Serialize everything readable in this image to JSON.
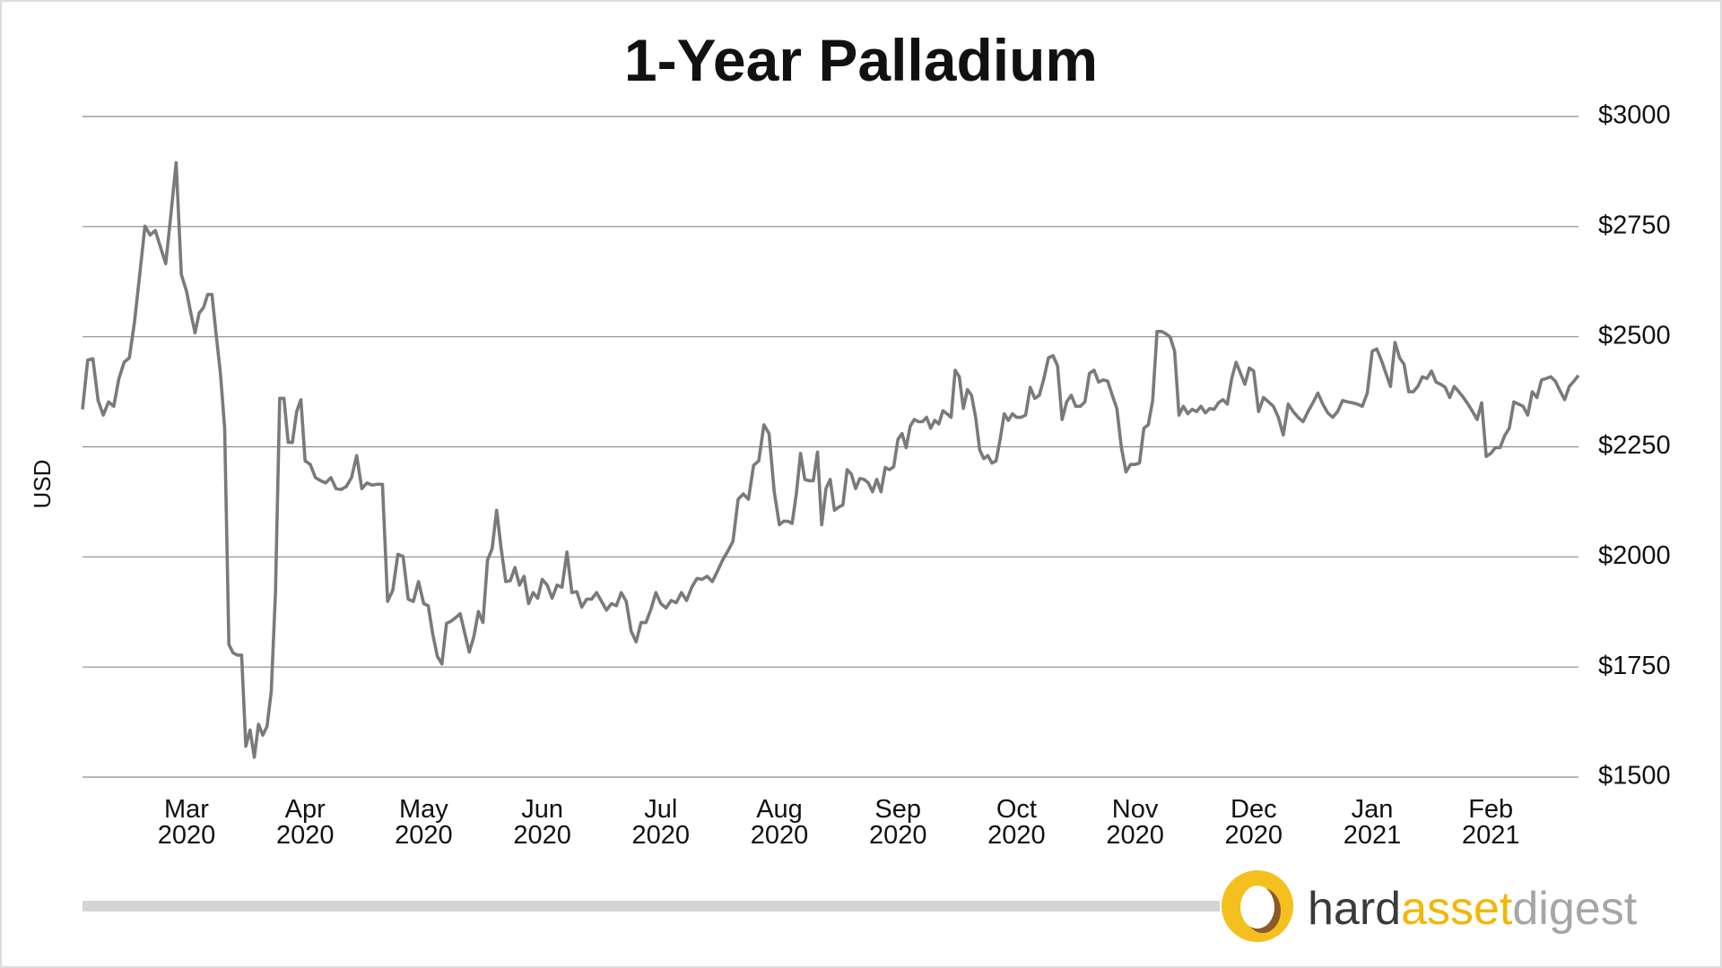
{
  "chart_data": {
    "type": "line",
    "title": "1-Year Palladium",
    "ylabel": "USD",
    "ylim": [
      1500,
      3000
    ],
    "yticks": [
      {
        "value": 1500,
        "label": "$1500"
      },
      {
        "value": 1750,
        "label": "$1750"
      },
      {
        "value": 2000,
        "label": "$2000"
      },
      {
        "value": 2250,
        "label": "$2250"
      },
      {
        "value": 2500,
        "label": "$2500"
      },
      {
        "value": 2750,
        "label": "$2750"
      },
      {
        "value": 3000,
        "label": "$3000"
      }
    ],
    "grid": true,
    "color": "#7a7a7a",
    "x": [
      null,
      null,
      null,
      null,
      null,
      null,
      null,
      null,
      null,
      null,
      null,
      null,
      null,
      null,
      null,
      null,
      null,
      null,
      null,
      null,
      "Mar 2020",
      "Mar 2020",
      "Mar 2020",
      "Mar 2020",
      "Mar 2020",
      "Mar 2020",
      "Mar 2020",
      "Mar 2020",
      "Mar 2020",
      "Mar 2020",
      "Mar 2020",
      "Mar 2020",
      "Mar 2020",
      "Mar 2020",
      "Mar 2020",
      "Mar 2020",
      "Mar 2020",
      "Mar 2020",
      "Mar 2020",
      "Mar 2020",
      "Mar 2020",
      "Mar 2020",
      "Mar 2020",
      "Mar 2020",
      "Mar 2020",
      "Mar 2020",
      "Mar 2020",
      "Mar 2020",
      "Apr 2020",
      "Apr 2020",
      "Apr 2020",
      "Apr 2020",
      "Apr 2020",
      "Apr 2020",
      "Apr 2020",
      "Apr 2020",
      "Apr 2020",
      "Apr 2020",
      "Apr 2020",
      "Apr 2020",
      "Apr 2020",
      "Apr 2020",
      "Apr 2020",
      "Apr 2020",
      "Apr 2020",
      "Apr 2020",
      "Apr 2020",
      "Apr 2020",
      "Apr 2020",
      "Apr 2020",
      "Apr 2020",
      "May 2020",
      "May 2020",
      "May 2020",
      "May 2020",
      "May 2020",
      "May 2020",
      "May 2020",
      "May 2020",
      "May 2020",
      "May 2020",
      "May 2020",
      "May 2020",
      "May 2020",
      "May 2020",
      "May 2020",
      "May 2020",
      "May 2020",
      "May 2020",
      "May 2020",
      "May 2020",
      "May 2020",
      "May 2020",
      "May 2020",
      "May 2020",
      "May 2020",
      "May 2020",
      "Jun 2020",
      "Jun 2020",
      "Jun 2020",
      "Jun 2020",
      "Jun 2020",
      "Jun 2020",
      "Jun 2020",
      "Jun 2020",
      "Jun 2020",
      "Jun 2020",
      "Jun 2020",
      "Jun 2020",
      "Jun 2020",
      "Jun 2020",
      "Jun 2020",
      "Jun 2020",
      "Jun 2020",
      "Jun 2020",
      "Jun 2020",
      "Jun 2020",
      "Jun 2020",
      "Jun 2020",
      "Jun 2020",
      "Jun 2020",
      "Jul 2020",
      "Jul 2020",
      "Jul 2020",
      "Jul 2020",
      "Jul 2020",
      "Jul 2020",
      "Jul 2020",
      "Jul 2020",
      "Jul 2020",
      "Jul 2020",
      "Jul 2020",
      "Jul 2020",
      "Jul 2020",
      "Jul 2020",
      "Jul 2020",
      "Jul 2020",
      "Jul 2020",
      "Jul 2020",
      "Jul 2020",
      "Jul 2020",
      "Jul 2020",
      "Jul 2020",
      "Jul 2020",
      "Aug 2020",
      "Aug 2020",
      "Aug 2020",
      "Aug 2020",
      "Aug 2020",
      "Aug 2020",
      "Aug 2020",
      "Aug 2020",
      "Aug 2020",
      "Aug 2020",
      "Aug 2020",
      "Aug 2020",
      "Aug 2020",
      "Aug 2020",
      "Aug 2020",
      "Aug 2020",
      "Aug 2020",
      "Aug 2020",
      "Aug 2020",
      "Aug 2020",
      "Aug 2020",
      "Aug 2020",
      "Aug 2020",
      "Aug 2020",
      "Aug 2020",
      "Aug 2020",
      "Aug 2020",
      "Aug 2020",
      "Sep 2020",
      "Sep 2020",
      "Sep 2020",
      "Sep 2020",
      "Sep 2020",
      "Sep 2020",
      "Sep 2020",
      "Sep 2020",
      "Sep 2020",
      "Sep 2020",
      "Sep 2020",
      "Sep 2020",
      "Sep 2020",
      "Sep 2020",
      "Sep 2020",
      "Sep 2020",
      "Sep 2020",
      "Sep 2020",
      "Sep 2020",
      "Sep 2020",
      "Sep 2020",
      "Sep 2020",
      "Sep 2020",
      "Sep 2020",
      "Sep 2020",
      "Sep 2020",
      "Sep 2020",
      "Sep 2020",
      "Sep 2020",
      "Oct 2020",
      "Oct 2020",
      "Oct 2020",
      "Oct 2020",
      "Oct 2020",
      "Oct 2020",
      "Oct 2020",
      "Oct 2020",
      "Oct 2020",
      "Oct 2020",
      "Oct 2020",
      "Oct 2020",
      "Oct 2020",
      "Oct 2020",
      "Oct 2020",
      "Oct 2020",
      "Oct 2020",
      "Oct 2020",
      "Oct 2020",
      "Oct 2020",
      "Oct 2020",
      "Oct 2020",
      "Oct 2020",
      "Oct 2020",
      "Oct 2020",
      "Oct 2020",
      "Nov 2020",
      "Nov 2020",
      "Nov 2020",
      "Nov 2020",
      "Nov 2020",
      "Nov 2020",
      "Nov 2020",
      "Nov 2020",
      "Nov 2020",
      "Nov 2020",
      "Nov 2020",
      "Nov 2020",
      "Nov 2020",
      "Nov 2020",
      "Nov 2020",
      "Nov 2020",
      "Nov 2020",
      "Nov 2020",
      "Nov 2020",
      "Nov 2020",
      "Nov 2020",
      "Nov 2020",
      "Nov 2020",
      "Nov 2020",
      "Nov 2020",
      "Nov 2020",
      "Nov 2020",
      "Dec 2020",
      "Dec 2020",
      "Dec 2020",
      "Dec 2020",
      "Dec 2020",
      "Dec 2020",
      "Dec 2020",
      "Dec 2020",
      "Dec 2020",
      "Dec 2020",
      "Dec 2020",
      "Dec 2020",
      "Dec 2020",
      "Dec 2020",
      "Dec 2020",
      "Dec 2020",
      "Dec 2020",
      "Dec 2020",
      "Dec 2020",
      "Dec 2020",
      "Dec 2020",
      "Dec 2020",
      "Dec 2020",
      "Dec 2020",
      "Jan 2021",
      "Jan 2021",
      "Jan 2021",
      "Jan 2021",
      "Jan 2021",
      "Jan 2021",
      "Jan 2021",
      "Jan 2021",
      "Jan 2021",
      "Jan 2021",
      "Jan 2021",
      "Jan 2021",
      "Jan 2021",
      "Jan 2021",
      "Jan 2021",
      "Jan 2021",
      "Jan 2021",
      "Jan 2021",
      "Jan 2021",
      "Jan 2021",
      "Jan 2021",
      "Jan 2021",
      "Jan 2021",
      "Jan 2021",
      "Jan 2021",
      "Jan 2021",
      "Feb 2021",
      "Feb 2021",
      "Feb 2021",
      "Feb 2021",
      "Feb 2021",
      "Feb 2021",
      "Feb 2021",
      "Feb 2021",
      "Feb 2021",
      "Feb 2021",
      "Feb 2021",
      "Feb 2021",
      "Feb 2021",
      "Feb 2021",
      "Feb 2021",
      "Feb 2021",
      "Feb 2021",
      "Feb 2021",
      "Feb 2021",
      "Feb 2021"
    ],
    "values": [
      2335,
      2447,
      2450,
      2355,
      2322,
      2352,
      2342,
      2405,
      2442,
      2452,
      2534,
      2641,
      2751,
      2731,
      2741,
      2703,
      2666,
      2778,
      2895,
      2641,
      2603,
      2554,
      2509,
      2554,
      2566,
      2596,
      2596,
      2504,
      2417,
      2292,
      1801,
      1782,
      1777,
      1777,
      1570,
      1607,
      1545,
      1620,
      1595,
      1615,
      1694,
      1919,
      2360,
      2360,
      2260,
      2260,
      2330,
      2357,
      2218,
      2210,
      2180,
      2173,
      2168,
      2180,
      2155,
      2153,
      2160,
      2180,
      2230,
      2155,
      2168,
      2163,
      2165,
      2165,
      1899,
      1924,
      2006,
      2001,
      1904,
      1899,
      1944,
      1894,
      1889,
      1824,
      1774,
      1757,
      1849,
      1854,
      1862,
      1871,
      1827,
      1784,
      1819,
      1876,
      1851,
      1993,
      2018,
      2106,
      2018,
      1944,
      1946,
      1976,
      1936,
      1956,
      1894,
      1919,
      1906,
      1949,
      1936,
      1906,
      1936,
      1931,
      2011,
      1919,
      1921,
      1886,
      1904,
      1904,
      1919,
      1899,
      1879,
      1894,
      1889,
      1919,
      1899,
      1831,
      1807,
      1851,
      1851,
      1881,
      1919,
      1894,
      1884,
      1901,
      1896,
      1919,
      1901,
      1931,
      1951,
      1949,
      1956,
      1944,
      1968,
      1993,
      2013,
      2036,
      2131,
      2143,
      2131,
      2208,
      2218,
      2300,
      2280,
      2148,
      2073,
      2081,
      2081,
      2076,
      2143,
      2235,
      2176,
      2173,
      2173,
      2238,
      2073,
      2155,
      2176,
      2106,
      2113,
      2118,
      2198,
      2188,
      2155,
      2178,
      2176,
      2168,
      2148,
      2176,
      2148,
      2203,
      2198,
      2205,
      2267,
      2280,
      2248,
      2297,
      2312,
      2307,
      2307,
      2317,
      2292,
      2310,
      2302,
      2332,
      2325,
      2317,
      2424,
      2409,
      2337,
      2380,
      2367,
      2317,
      2243,
      2223,
      2230,
      2213,
      2218,
      2267,
      2325,
      2310,
      2325,
      2317,
      2317,
      2322,
      2385,
      2360,
      2367,
      2405,
      2452,
      2457,
      2434,
      2312,
      2352,
      2367,
      2342,
      2342,
      2352,
      2417,
      2424,
      2397,
      2402,
      2399,
      2367,
      2337,
      2248,
      2193,
      2210,
      2210,
      2213,
      2292,
      2300,
      2355,
      2512,
      2512,
      2507,
      2499,
      2467,
      2322,
      2342,
      2325,
      2335,
      2330,
      2342,
      2327,
      2337,
      2335,
      2350,
      2357,
      2347,
      2405,
      2442,
      2417,
      2392,
      2429,
      2422,
      2330,
      2362,
      2352,
      2342,
      2317,
      2277,
      2347,
      2330,
      2317,
      2307,
      2330,
      2350,
      2372,
      2347,
      2327,
      2317,
      2330,
      2355,
      2352,
      2350,
      2347,
      2342,
      2372,
      2467,
      2472,
      2447,
      2417,
      2387,
      2487,
      2452,
      2437,
      2375,
      2375,
      2387,
      2409,
      2405,
      2422,
      2397,
      2392,
      2385,
      2362,
      2387,
      2375,
      2362,
      2347,
      2330,
      2312,
      2350,
      2228,
      2235,
      2248,
      2248,
      2275,
      2292,
      2352,
      2347,
      2342,
      2322,
      2375,
      2362,
      2402,
      2405,
      2409,
      2399,
      2377,
      2357,
      2387,
      2399,
      2412
    ]
  },
  "logo": {
    "parts": [
      "hard",
      "asset",
      "digest"
    ]
  }
}
